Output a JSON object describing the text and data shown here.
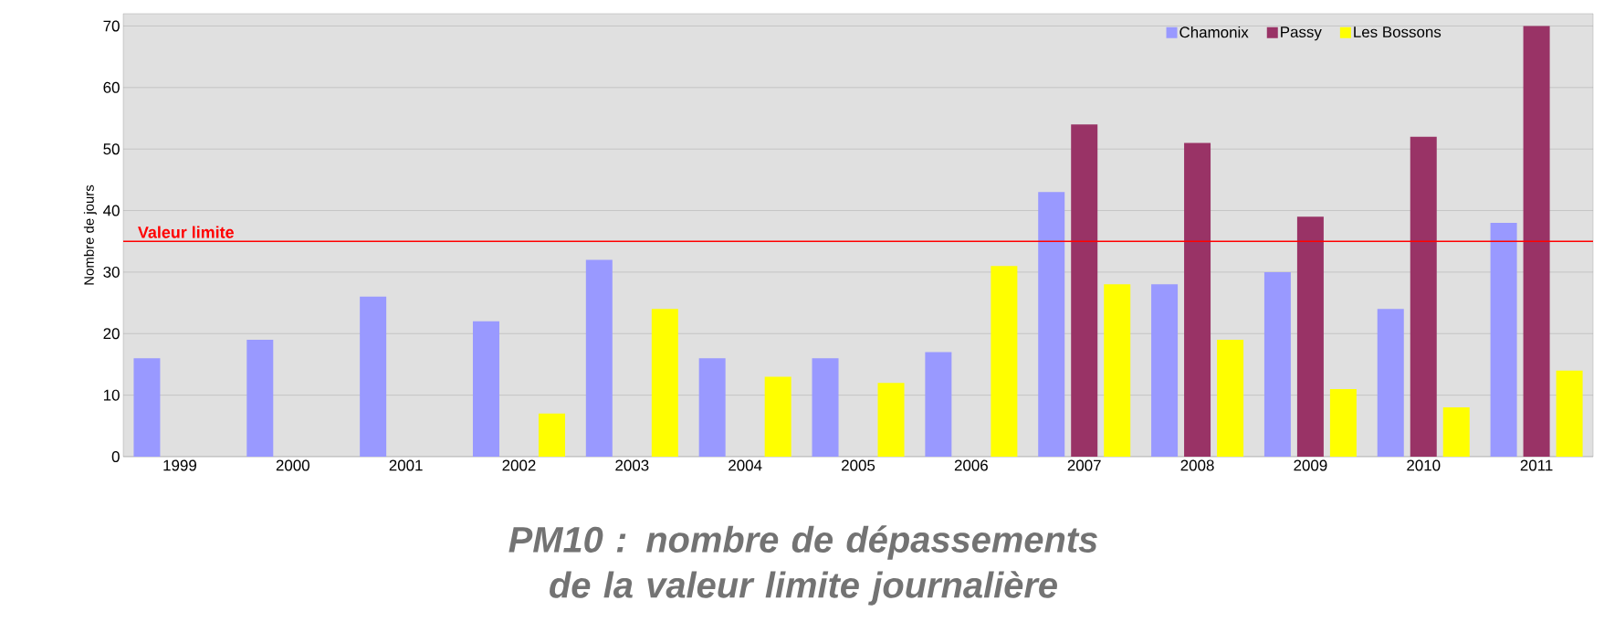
{
  "chart_data": {
    "type": "bar",
    "title": "PM10 : nombre de dépassements de la valeur limite journalière",
    "ylabel": "Nombre de jours",
    "categories": [
      "1999",
      "2000",
      "2001",
      "2002",
      "2003",
      "2004",
      "2005",
      "2006",
      "2007",
      "2008",
      "2009",
      "2010",
      "2011"
    ],
    "series": [
      {
        "name": "Chamonix",
        "color": "#9999ff",
        "values": [
          16,
          19,
          26,
          22,
          32,
          16,
          16,
          17,
          43,
          28,
          30,
          24,
          38
        ]
      },
      {
        "name": "Passy",
        "color": "#993366",
        "values": [
          null,
          null,
          null,
          null,
          null,
          null,
          null,
          null,
          54,
          51,
          39,
          52,
          70
        ]
      },
      {
        "name": "Les Bossons",
        "color": "#ffff00",
        "values": [
          null,
          null,
          null,
          7,
          24,
          13,
          12,
          31,
          28,
          19,
          11,
          8,
          14
        ]
      }
    ],
    "ylim": [
      0,
      72
    ],
    "yticks": [
      0,
      10,
      20,
      30,
      40,
      50,
      60,
      70
    ],
    "grid": "y",
    "legend": "top right",
    "ref_lines": [
      {
        "axis": "y",
        "value": 35,
        "label": "Valeur limite",
        "color": "#ff0000"
      }
    ]
  }
}
